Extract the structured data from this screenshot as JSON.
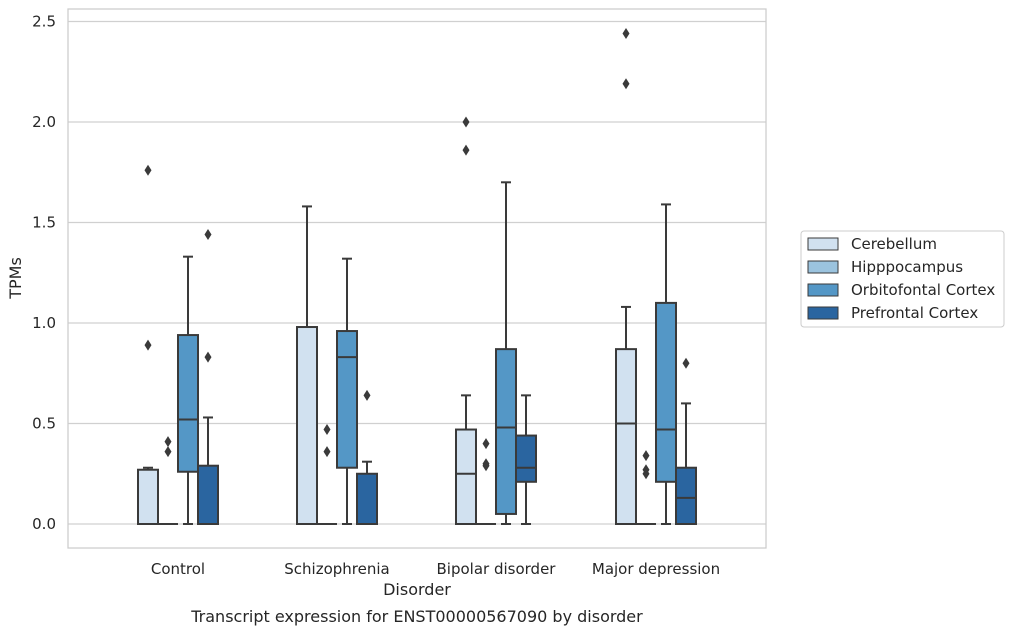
{
  "caption": "Transcript expression for ENST00000567090 by disorder",
  "chart_data": {
    "type": "box",
    "title": "",
    "xlabel": "Disorder",
    "ylabel": "TPMs",
    "ylim": [
      -0.12,
      2.56
    ],
    "yticks": [
      "0.0",
      "0.5",
      "1.0",
      "1.5",
      "2.0",
      "2.5"
    ],
    "ytick_values": [
      0,
      0.5,
      1.0,
      1.5,
      2.0,
      2.5
    ],
    "grid": "horizontal",
    "legend_position": "right",
    "categories": [
      "Control",
      "Schizophrenia",
      "Bipolar disorder",
      "Major depression"
    ],
    "series": [
      {
        "name": "Cerebellum",
        "color": "#d1e1f0",
        "boxes": [
          {
            "whislo": 0,
            "q1": 0,
            "med": 0,
            "q3": 0.27,
            "whishi": 0.28,
            "fliers": [
              1.76,
              0.89
            ]
          },
          {
            "whislo": 0,
            "q1": 0,
            "med": 0,
            "q3": 0.98,
            "whishi": 1.58,
            "fliers": []
          },
          {
            "whislo": 0,
            "q1": 0,
            "med": 0.25,
            "q3": 0.47,
            "whishi": 0.64,
            "fliers": [
              2.0,
              1.86
            ]
          },
          {
            "whislo": 0,
            "q1": 0,
            "med": 0.5,
            "q3": 0.87,
            "whishi": 1.08,
            "fliers": [
              2.44,
              2.19
            ]
          }
        ]
      },
      {
        "name": "Hipppocampus",
        "color": "#9bc3de",
        "boxes": [
          {
            "whislo": 0,
            "q1": 0,
            "med": 0,
            "q3": 0,
            "whishi": 0,
            "fliers": [
              0.41,
              0.36
            ]
          },
          {
            "whislo": 0,
            "q1": 0,
            "med": 0,
            "q3": 0,
            "whishi": 0,
            "fliers": [
              0.47,
              0.36
            ]
          },
          {
            "whislo": 0,
            "q1": 0,
            "med": 0,
            "q3": 0,
            "whishi": 0,
            "fliers": [
              0.4,
              0.3,
              0.29
            ]
          },
          {
            "whislo": 0,
            "q1": 0,
            "med": 0,
            "q3": 0,
            "whishi": 0,
            "fliers": [
              0.34,
              0.27,
              0.25
            ]
          }
        ]
      },
      {
        "name": "Orbitofontal Cortex",
        "color": "#5497c6",
        "boxes": [
          {
            "whislo": 0,
            "q1": 0.26,
            "med": 0.52,
            "q3": 0.94,
            "whishi": 1.33,
            "fliers": []
          },
          {
            "whislo": 0,
            "q1": 0.28,
            "med": 0.83,
            "q3": 0.96,
            "whishi": 1.32,
            "fliers": []
          },
          {
            "whislo": 0,
            "q1": 0.05,
            "med": 0.48,
            "q3": 0.87,
            "whishi": 1.7,
            "fliers": []
          },
          {
            "whislo": 0,
            "q1": 0.21,
            "med": 0.47,
            "q3": 1.1,
            "whishi": 1.59,
            "fliers": []
          }
        ]
      },
      {
        "name": "Prefrontal Cortex",
        "color": "#2a65a0",
        "boxes": [
          {
            "whislo": 0,
            "q1": 0,
            "med": 0,
            "q3": 0.29,
            "whishi": 0.53,
            "fliers": [
              1.44,
              0.83
            ]
          },
          {
            "whislo": 0,
            "q1": 0,
            "med": 0,
            "q3": 0.25,
            "whishi": 0.31,
            "fliers": [
              0.64
            ]
          },
          {
            "whislo": 0,
            "q1": 0.21,
            "med": 0.28,
            "q3": 0.44,
            "whishi": 0.64,
            "fliers": []
          },
          {
            "whislo": 0,
            "q1": 0,
            "med": 0.13,
            "q3": 0.28,
            "whishi": 0.6,
            "fliers": [
              0.8
            ]
          }
        ]
      }
    ]
  }
}
